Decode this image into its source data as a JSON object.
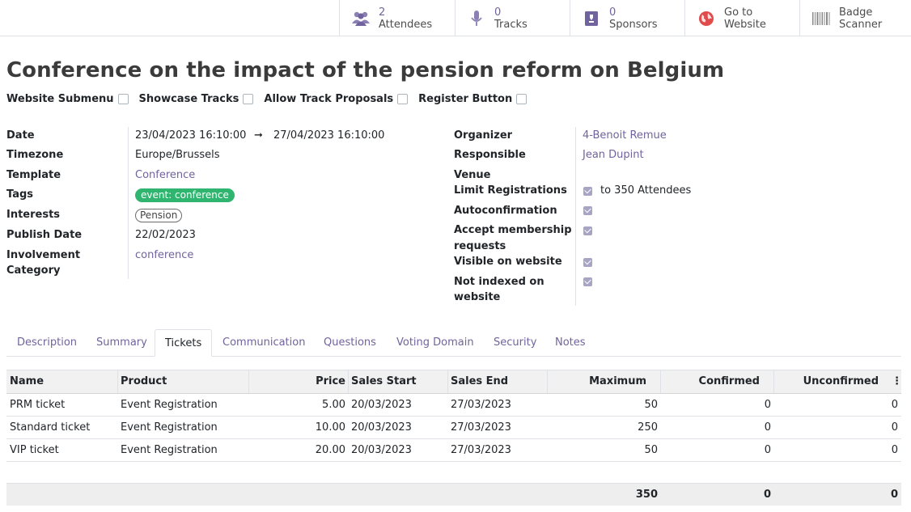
{
  "smart_buttons": [
    {
      "value": "2",
      "label": "Attendees"
    },
    {
      "value": "0",
      "label": "Tracks"
    },
    {
      "value": "0",
      "label": "Sponsors"
    },
    {
      "value": "Go to",
      "label": "Website"
    },
    {
      "value": "Badge",
      "label": "Scanner"
    }
  ],
  "title": "Conference on the impact of the pension reform on Belgium",
  "options": [
    {
      "label": "Website Submenu",
      "checked": false
    },
    {
      "label": "Showcase Tracks",
      "checked": false
    },
    {
      "label": "Allow Track Proposals",
      "checked": false
    },
    {
      "label": "Register Button",
      "checked": false
    }
  ],
  "left_fields": {
    "date_label": "Date",
    "date_start": "23/04/2023 16:10:00",
    "date_arrow": "➞",
    "date_end": "27/04/2023 16:10:00",
    "timezone_label": "Timezone",
    "timezone": "Europe/Brussels",
    "template_label": "Template",
    "template": "Conference",
    "tags_label": "Tags",
    "tag": "event: conference",
    "interests_label": "Interests",
    "interest": "Pension",
    "publish_label": "Publish Date",
    "publish_date": "22/02/2023",
    "involvement_label_1": "Involvement",
    "involvement_label_2": "Category",
    "involvement": "conference"
  },
  "right_fields": {
    "organizer_label": "Organizer",
    "organizer": "4-Benoit Remue",
    "responsible_label": "Responsible",
    "responsible": "Jean Dupint",
    "venue_label": "Venue",
    "limit_label": "Limit Registrations",
    "limit_text": "to 350 Attendees",
    "autoconf_label": "Autoconfirmation",
    "accept_label_1": "Accept membership",
    "accept_label_2": "requests",
    "visible_label": "Visible on website",
    "notindexed_label_1": "Not indexed on",
    "notindexed_label_2": "website"
  },
  "tabs": [
    "Description",
    "Summary",
    "Tickets",
    "Communication",
    "Questions",
    "Voting Domain",
    "Security",
    "Notes"
  ],
  "active_tab": "Tickets",
  "table": {
    "headers": [
      "Name",
      "Product",
      "Price",
      "Sales Start",
      "Sales End",
      "Maximum",
      "Confirmed",
      "Unconfirmed"
    ],
    "rows": [
      [
        "PRM ticket",
        "Event Registration",
        "5.00",
        "20/03/2023",
        "27/03/2023",
        "50",
        "0",
        "0"
      ],
      [
        "Standard ticket",
        "Event Registration",
        "10.00",
        "20/03/2023",
        "27/03/2023",
        "250",
        "0",
        "0"
      ],
      [
        "VIP ticket",
        "Event Registration",
        "20.00",
        "20/03/2023",
        "27/03/2023",
        "50",
        "0",
        "0"
      ]
    ],
    "totals": {
      "maximum": "350",
      "confirmed": "0",
      "unconfirmed": "0"
    }
  },
  "colors": {
    "accent": "#71639e",
    "tag_green": "#2fb56f",
    "checkbox": "#a8a4c4"
  }
}
